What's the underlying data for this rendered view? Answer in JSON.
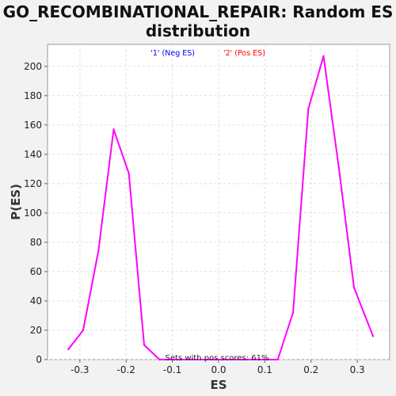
{
  "chart_data": {
    "type": "line",
    "title_line1": "GO_RECOMBINATIONAL_REPAIR: Random ES",
    "title_line2": "distribution",
    "xlabel": "ES",
    "ylabel": "P(ES)",
    "xlim": [
      -0.37,
      0.37
    ],
    "ylim": [
      0,
      215
    ],
    "xticks": [
      "-0.3",
      "-0.2",
      "-0.1",
      "0.0",
      "0.1",
      "0.2",
      "0.3"
    ],
    "yticks": [
      "0",
      "20",
      "40",
      "60",
      "80",
      "100",
      "120",
      "140",
      "160",
      "180",
      "200"
    ],
    "grid": true,
    "legend": {
      "placement": "top-center",
      "entries": [
        {
          "label": "'1' (Neg ES)",
          "color": "#0000ff"
        },
        {
          "label": "'2' (Pos ES)",
          "color": "#ff0000"
        }
      ]
    },
    "annotation": "Sets with pos scores: 61%",
    "line_color": "#ff00ff",
    "series": [
      {
        "x": [
          -0.325,
          -0.293,
          -0.26,
          -0.227,
          -0.194,
          -0.161,
          -0.128,
          -0.095,
          -0.062,
          -0.029,
          0.004,
          0.037,
          0.07,
          0.103,
          0.128,
          0.161,
          0.194,
          0.227,
          0.26,
          0.293,
          0.334
        ],
        "y": [
          7,
          20,
          74,
          157,
          127,
          10,
          0,
          0,
          0,
          0,
          0,
          0,
          0,
          0,
          0,
          32,
          171,
          207,
          131,
          49,
          16
        ]
      }
    ]
  }
}
